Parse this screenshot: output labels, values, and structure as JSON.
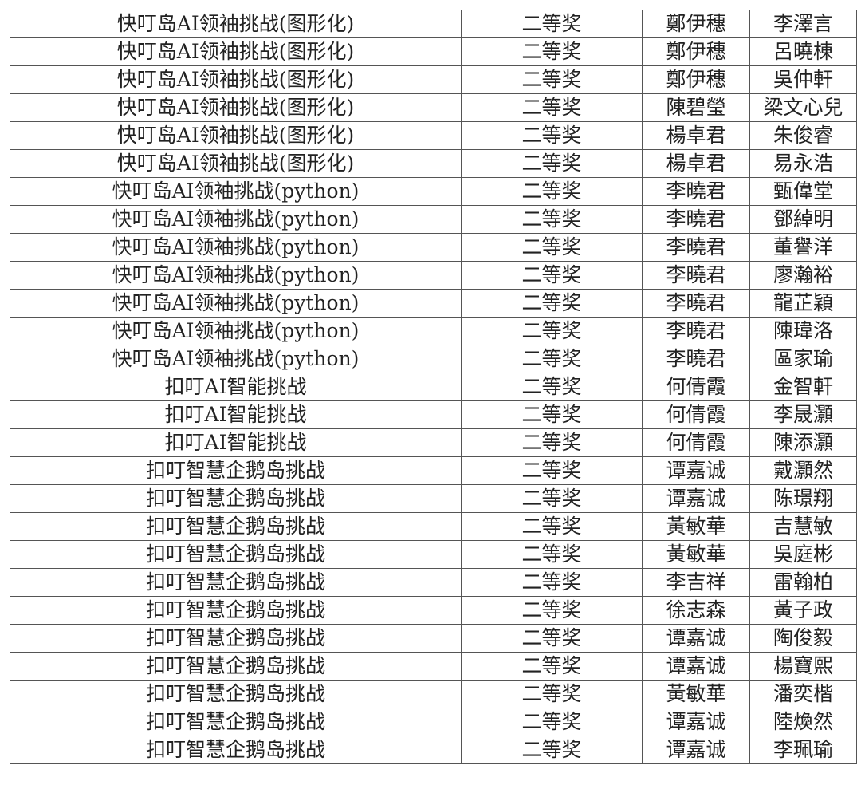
{
  "rows": [
    [
      "快叮岛AI领袖挑战(图形化)",
      "二等奖",
      "鄭伊穗",
      "李澤言"
    ],
    [
      "快叮岛AI领袖挑战(图形化)",
      "二等奖",
      "鄭伊穗",
      "呂曉棟"
    ],
    [
      "快叮岛AI领袖挑战(图形化)",
      "二等奖",
      "鄭伊穗",
      "吳仲軒"
    ],
    [
      "快叮岛AI领袖挑战(图形化)",
      "二等奖",
      "陳碧瑩",
      "梁文心兒"
    ],
    [
      "快叮岛AI领袖挑战(图形化)",
      "二等奖",
      "楊卓君",
      "朱俊睿"
    ],
    [
      "快叮岛AI领袖挑战(图形化)",
      "二等奖",
      "楊卓君",
      "易永浩"
    ],
    [
      "快叮岛AI领袖挑战(python)",
      "二等奖",
      "李曉君",
      "甄偉堂"
    ],
    [
      "快叮岛AI领袖挑战(python)",
      "二等奖",
      "李曉君",
      "鄧綽明"
    ],
    [
      "快叮岛AI领袖挑战(python)",
      "二等奖",
      "李曉君",
      "董譽洋"
    ],
    [
      "快叮岛AI领袖挑战(python)",
      "二等奖",
      "李曉君",
      "廖瀚裕"
    ],
    [
      "快叮岛AI领袖挑战(python)",
      "二等奖",
      "李曉君",
      "龍芷穎"
    ],
    [
      "快叮岛AI领袖挑战(python)",
      "二等奖",
      "李曉君",
      "陳瑋洛"
    ],
    [
      "快叮岛AI领袖挑战(python)",
      "二等奖",
      "李曉君",
      "區家瑜"
    ],
    [
      "扣叮AI智能挑战",
      "二等奖",
      "何倩霞",
      "金智軒"
    ],
    [
      "扣叮AI智能挑战",
      "二等奖",
      "何倩霞",
      "李晟灝"
    ],
    [
      "扣叮AI智能挑战",
      "二等奖",
      "何倩霞",
      "陳添灝"
    ],
    [
      "扣叮智慧企鹅岛挑战",
      "二等奖",
      "谭嘉诚",
      "戴灝然"
    ],
    [
      "扣叮智慧企鹅岛挑战",
      "二等奖",
      "谭嘉诚",
      "陈璟翔"
    ],
    [
      "扣叮智慧企鹅岛挑战",
      "二等奖",
      "黃敏華",
      "吉慧敏"
    ],
    [
      "扣叮智慧企鹅岛挑战",
      "二等奖",
      "黃敏華",
      "吳庭彬"
    ],
    [
      "扣叮智慧企鹅岛挑战",
      "二等奖",
      "李吉祥",
      "雷翰柏"
    ],
    [
      "扣叮智慧企鹅岛挑战",
      "二等奖",
      "徐志森",
      "黃子政"
    ],
    [
      "扣叮智慧企鹅岛挑战",
      "二等奖",
      "谭嘉诚",
      "陶俊毅"
    ],
    [
      "扣叮智慧企鹅岛挑战",
      "二等奖",
      "谭嘉诚",
      "楊寶熙"
    ],
    [
      "扣叮智慧企鹅岛挑战",
      "二等奖",
      "黃敏華",
      "潘奕楷"
    ],
    [
      "扣叮智慧企鹅岛挑战",
      "二等奖",
      "谭嘉诚",
      "陸煥然"
    ],
    [
      "扣叮智慧企鹅岛挑战",
      "二等奖",
      "谭嘉诚",
      "李珮瑜"
    ]
  ]
}
